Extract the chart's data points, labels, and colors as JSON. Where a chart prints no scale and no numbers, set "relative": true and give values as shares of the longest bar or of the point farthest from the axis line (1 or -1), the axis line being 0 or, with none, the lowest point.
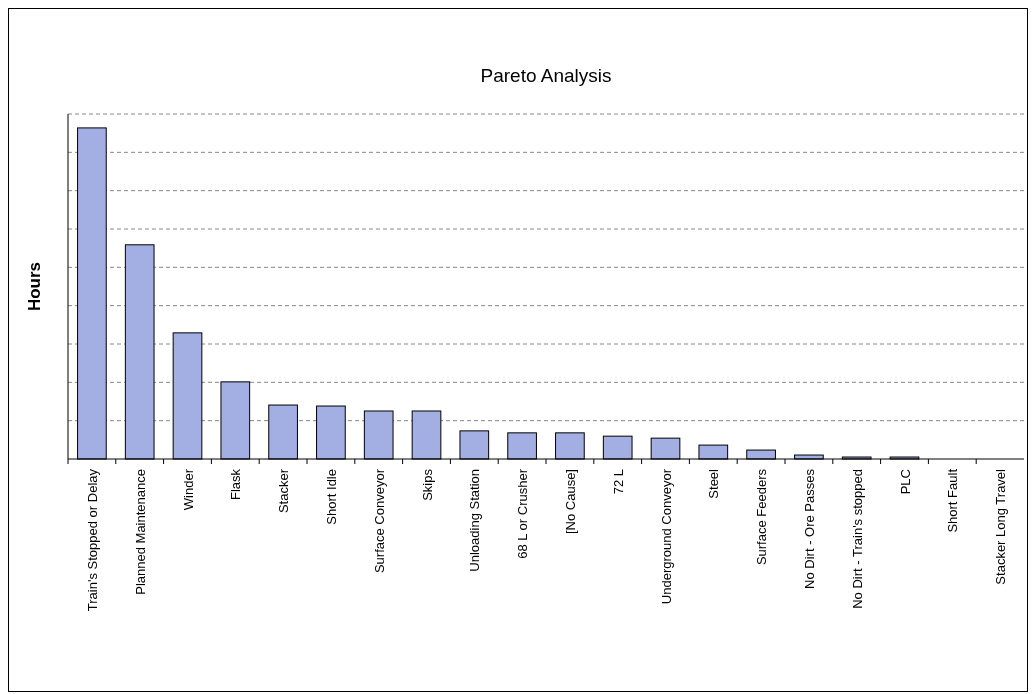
{
  "chart_data": {
    "type": "bar",
    "title": "Pareto Analysis",
    "ylabel": "Hours",
    "relative": true,
    "grid": true,
    "color": "#a3aee3",
    "categories": [
      "Train's Stopped or Delay",
      "Planned Maintenance",
      "Winder",
      "Flask",
      "Stacker",
      "Short Idle",
      "Surface Conveyor",
      "Skips",
      "Unloading Station",
      "68 L or Crusher",
      "[No Cause]",
      "72 L",
      "Underground Conveyor",
      "Steel",
      "Surface Feeders",
      "No Dirt - Ore Passes",
      "No Dirt - Train's stopped",
      "PLC",
      "Short Fault",
      "Stacker Long Travel"
    ],
    "values": [
      1,
      0.647,
      0.381,
      0.233,
      0.163,
      0.16,
      0.145,
      0.145,
      0.085,
      0.079,
      0.079,
      0.069,
      0.063,
      0.042,
      0.027,
      0.012,
      0.006,
      0.006,
      0,
      0
    ]
  }
}
